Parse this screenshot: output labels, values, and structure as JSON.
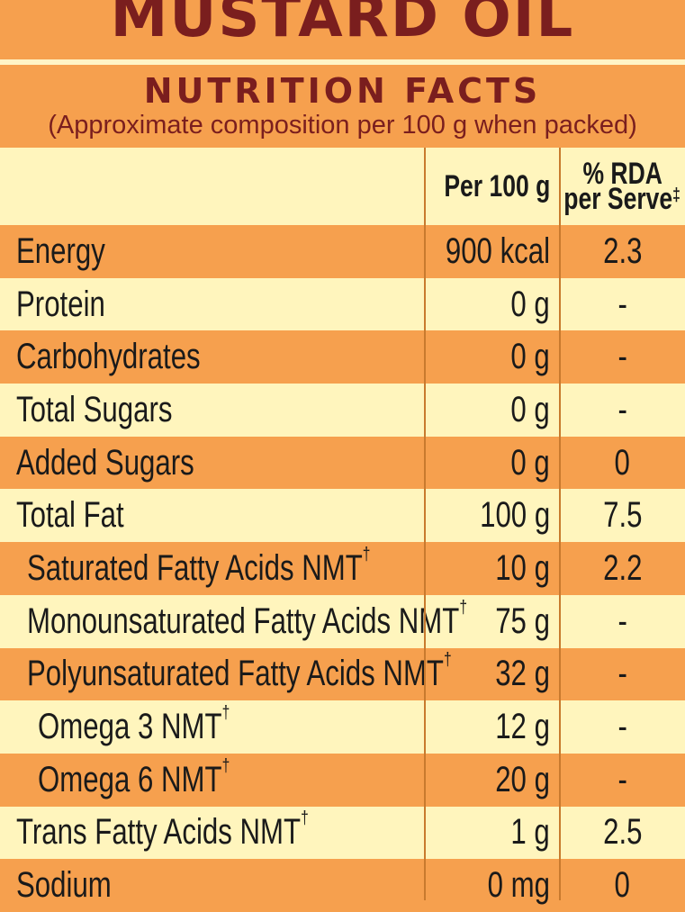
{
  "banner": {
    "title": "MUSTARD OIL"
  },
  "header": {
    "title": "NUTRITION FACTS",
    "subtitle": "(Approximate composition per 100 g when packed)"
  },
  "columns": {
    "per100": "Per 100 g",
    "rda_line1": "% RDA",
    "rda_line2": "per Serve",
    "rda_mark": "‡"
  },
  "footnote_mark": "†",
  "rows": [
    {
      "name": "Energy",
      "per100": "900 kcal",
      "rda": "2.3"
    },
    {
      "name": "Protein",
      "per100": "0 g",
      "rda": "-"
    },
    {
      "name": "Carbohydrates",
      "per100": "0 g",
      "rda": "-"
    },
    {
      "name": "Total Sugars",
      "per100": "0 g",
      "rda": "-"
    },
    {
      "name": "Added Sugars",
      "per100": "0 g",
      "rda": "0"
    },
    {
      "name": "Total Fat",
      "per100": "100 g",
      "rda": "7.5"
    },
    {
      "name": "Saturated Fatty Acids NMT",
      "per100": "10 g",
      "rda": "2.2"
    },
    {
      "name": "Monounsaturated Fatty Acids NMT",
      "per100": "75 g",
      "rda": "-"
    },
    {
      "name": "Polyunsaturated Fatty Acids NMT",
      "per100": "32 g",
      "rda": "-"
    },
    {
      "name": "Omega 3 NMT",
      "per100": "12 g",
      "rda": "-"
    },
    {
      "name": "Omega 6 NMT",
      "per100": "20 g",
      "rda": "-"
    },
    {
      "name": "Trans Fatty Acids NMT",
      "per100": "1 g",
      "rda": "2.5"
    },
    {
      "name": "Sodium",
      "per100": "0 mg",
      "rda": "0"
    }
  ]
}
